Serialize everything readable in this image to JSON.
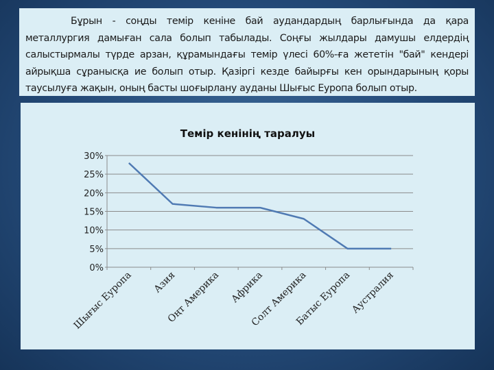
{
  "paragraph": "Бұрын - соңды темір кеніне бай аудандардың барлығында да қара металлургия дамыған сала болып табылады. Соңғы жылдары дамушы елдердің салыстырмалы түрде арзан, құрамындағы темір үлесі 60%-ға жететін \"бай\" кендері айрықша сұранысқа ие болып отыр. Қазіргі кезде байырғы кен орындарының қоры таусылуға жақын, оның басты шоғырлану ауданы Шығыс Еуропа болып отыр.",
  "chart_data": {
    "type": "line",
    "title": "Темір кенінің таралуы",
    "categories": [
      "Шығыс Еуропа",
      "Азия",
      "Оңт Америка",
      "Африка",
      "Солт Америка",
      "Батыс Еуропа",
      "Аустралия"
    ],
    "values": [
      28,
      17,
      16,
      16,
      13,
      5,
      5
    ],
    "yticks": [
      "0%",
      "5%",
      "10%",
      "15%",
      "20%",
      "25%",
      "30%"
    ],
    "ylim": [
      0,
      30
    ],
    "grid": true,
    "legend": "none",
    "color": "#4f7ab3"
  }
}
